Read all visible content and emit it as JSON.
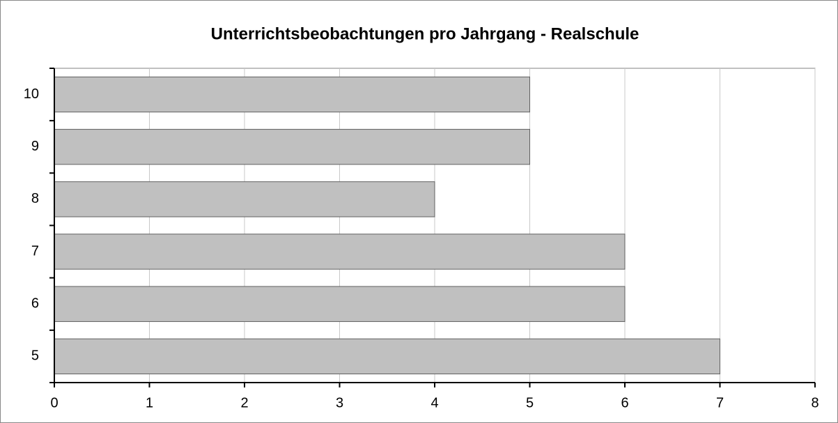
{
  "chart_data": {
    "type": "bar",
    "orientation": "horizontal",
    "title": "Unterrichtsbeobachtungen pro Jahrgang - Realschule",
    "categories": [
      "5",
      "6",
      "7",
      "8",
      "9",
      "10"
    ],
    "values": [
      7,
      6,
      6,
      4,
      5,
      5
    ],
    "color": "#c0c0c0",
    "xlim": [
      0,
      8
    ],
    "xticks": [
      0,
      1,
      2,
      3,
      4,
      5,
      6,
      7,
      8
    ],
    "grid": true
  }
}
